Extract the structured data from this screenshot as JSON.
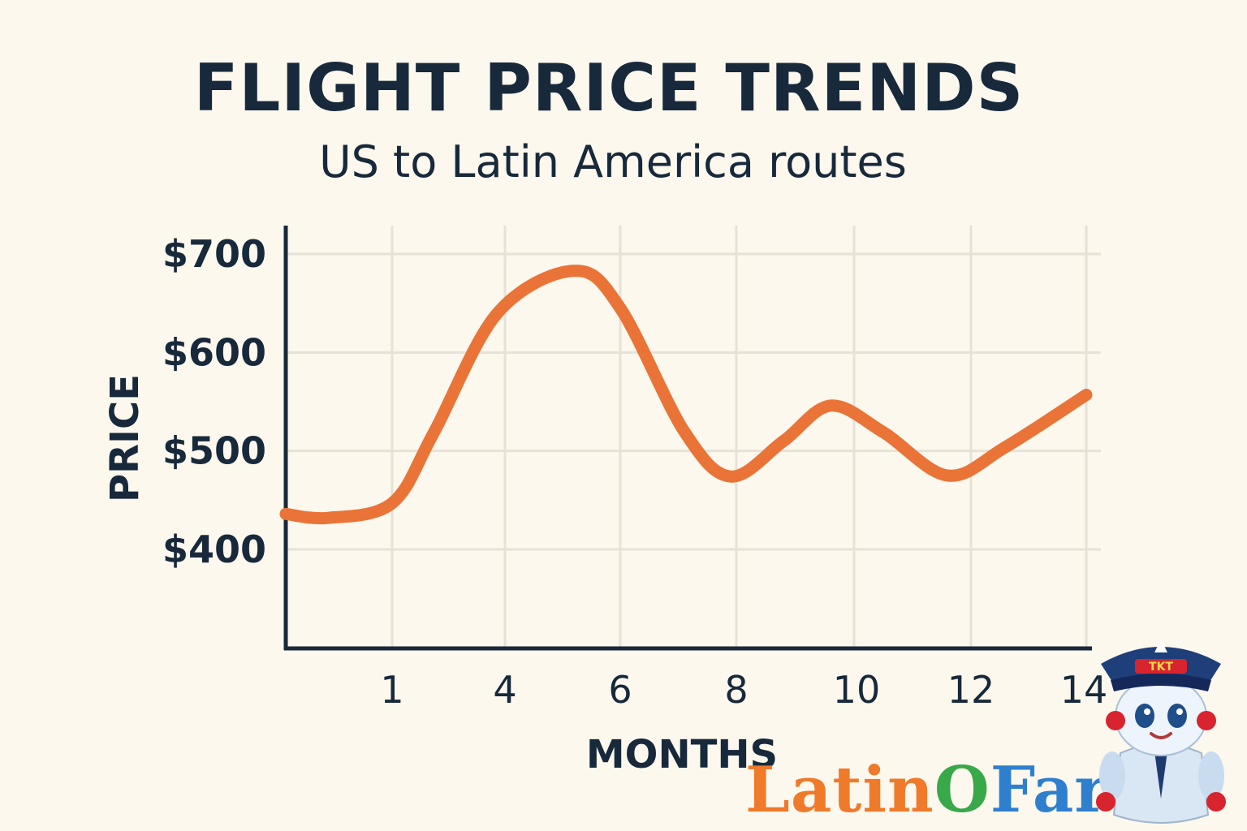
{
  "header": {
    "title": "FLIGHT PRICE TRENDS",
    "subtitle": "US to Latin America routes"
  },
  "chart_data": {
    "type": "line",
    "title": "FLIGHT PRICE TRENDS",
    "subtitle": "US to Latin America routes",
    "xlabel": "MONTHS",
    "ylabel": "PRICE",
    "x_tick_labels": [
      "1",
      "4",
      "6",
      "8",
      "10",
      "12",
      "14"
    ],
    "y_tick_labels": [
      "$400",
      "$500",
      "$600",
      "$700"
    ],
    "y_ticks": [
      400,
      500,
      600,
      700
    ],
    "ylim": [
      305,
      730
    ],
    "grid": true,
    "series": [
      {
        "color": "#ea7337",
        "points": [
          {
            "x": 0,
            "y": 436
          },
          {
            "x": 0.4,
            "y": 432
          },
          {
            "x": 1,
            "y": 447
          },
          {
            "x": 2.1,
            "y": 518
          },
          {
            "x": 3.8,
            "y": 640
          },
          {
            "x": 5.2,
            "y": 683
          },
          {
            "x": 6.0,
            "y": 645
          },
          {
            "x": 7.1,
            "y": 520
          },
          {
            "x": 7.9,
            "y": 474
          },
          {
            "x": 8.8,
            "y": 510
          },
          {
            "x": 9.6,
            "y": 546
          },
          {
            "x": 10.5,
            "y": 519
          },
          {
            "x": 11.6,
            "y": 475
          },
          {
            "x": 12.6,
            "y": 504
          },
          {
            "x": 14,
            "y": 557
          }
        ]
      }
    ]
  },
  "brand": {
    "part1": "Latin",
    "part2": "O",
    "part3": "Fare",
    "badge": "TKT"
  },
  "colors": {
    "background": "#fcf8ee",
    "text": "#17293b",
    "line": "#ea7337",
    "grid": "#e6e2d6"
  }
}
